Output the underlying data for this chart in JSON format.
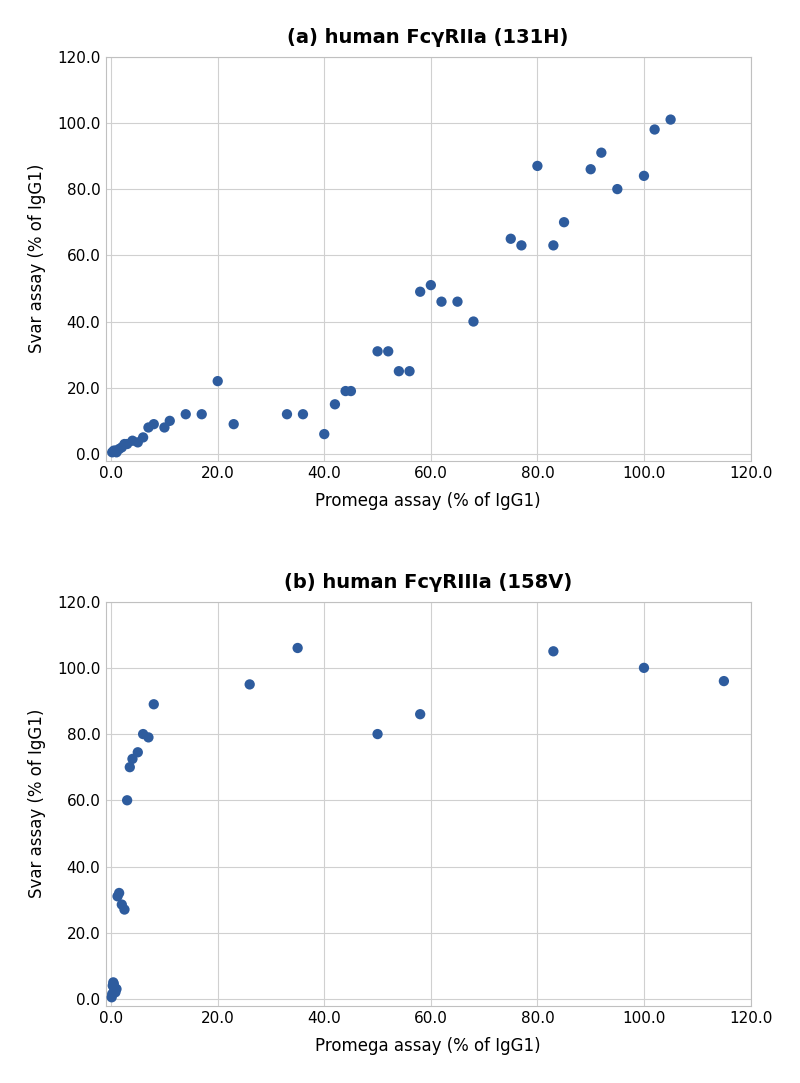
{
  "title_a": "(a) human FcγRIIa (131H)",
  "title_b": "(b) human FcγRIIIa (158V)",
  "xlabel": "Promega assay (% of IgG1)",
  "ylabel": "Svar assay (% of IgG1)",
  "xlim": [
    -1,
    120
  ],
  "ylim": [
    -2,
    120
  ],
  "xticks": [
    0,
    20,
    40,
    60,
    80,
    100,
    120
  ],
  "yticks": [
    0,
    20,
    40,
    60,
    80,
    100,
    120
  ],
  "xtick_labels": [
    "0.0",
    "20.0",
    "40.0",
    "60.0",
    "80.0",
    "100.0",
    "120.0"
  ],
  "ytick_labels": [
    "0.0",
    "20.0",
    "40.0",
    "60.0",
    "80.0",
    "100.0",
    "120.0"
  ],
  "dot_color": "#2e5c9e",
  "dot_size": 55,
  "scatter_a_x": [
    0.2,
    0.5,
    0.8,
    1.0,
    1.5,
    2.0,
    2.5,
    3.0,
    4.0,
    5.0,
    6.0,
    7.0,
    8.0,
    10.0,
    11.0,
    14.0,
    17.0,
    20.0,
    23.0,
    33.0,
    36.0,
    40.0,
    42.0,
    44.0,
    45.0,
    50.0,
    52.0,
    54.0,
    56.0,
    58.0,
    60.0,
    62.0,
    65.0,
    68.0,
    75.0,
    77.0,
    80.0,
    83.0,
    85.0,
    90.0,
    92.0,
    95.0,
    100.0,
    102.0,
    105.0
  ],
  "scatter_a_y": [
    0.5,
    1.0,
    1.0,
    0.5,
    1.5,
    2.0,
    3.0,
    3.0,
    4.0,
    3.5,
    5.0,
    8.0,
    9.0,
    8.0,
    10.0,
    12.0,
    12.0,
    22.0,
    9.0,
    12.0,
    12.0,
    6.0,
    15.0,
    19.0,
    19.0,
    31.0,
    31.0,
    25.0,
    25.0,
    49.0,
    51.0,
    46.0,
    46.0,
    40.0,
    65.0,
    63.0,
    87.0,
    63.0,
    70.0,
    86.0,
    91.0,
    80.0,
    84.0,
    98.0,
    101.0
  ],
  "scatter_b_x": [
    0.1,
    0.2,
    0.3,
    0.4,
    0.5,
    0.6,
    0.8,
    1.0,
    1.2,
    1.5,
    2.0,
    2.5,
    3.0,
    3.5,
    4.0,
    5.0,
    6.0,
    7.0,
    8.0,
    26.0,
    35.0,
    50.0,
    58.0,
    83.0,
    100.0,
    115.0
  ],
  "scatter_b_y": [
    0.5,
    1.5,
    4.0,
    5.0,
    4.5,
    3.0,
    2.0,
    3.0,
    31.0,
    32.0,
    28.5,
    27.0,
    60.0,
    70.0,
    72.5,
    74.5,
    80.0,
    79.0,
    89.0,
    95.0,
    106.0,
    80.0,
    86.0,
    105.0,
    100.0,
    96.0
  ]
}
